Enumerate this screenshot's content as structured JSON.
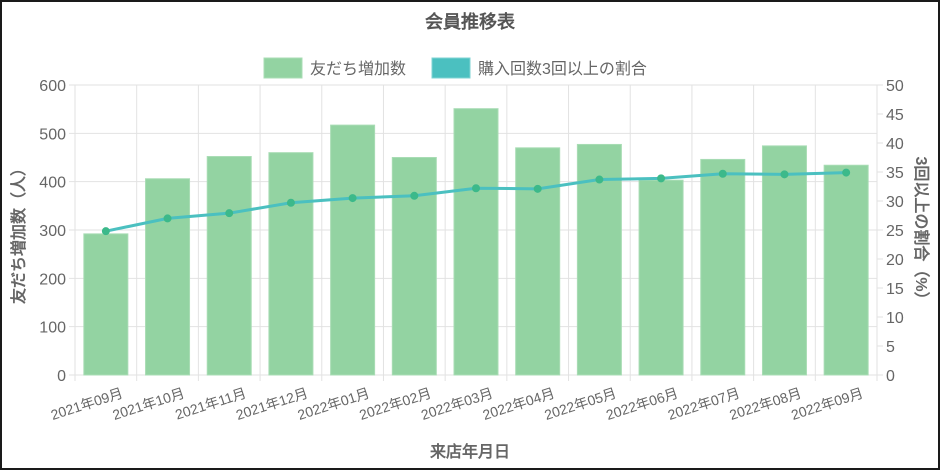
{
  "chart_data": {
    "type": "bar+line",
    "title": "会員推移表",
    "xlabel": "来店年月日",
    "ylabel_left": "友だち増加数（人）",
    "ylabel_right": "3回以上の割合（%）",
    "categories": [
      "2021年09月",
      "2021年10月",
      "2021年11月",
      "2021年12月",
      "2022年01月",
      "2022年02月",
      "2022年03月",
      "2022年04月",
      "2022年05月",
      "2022年06月",
      "2022年07月",
      "2022年08月",
      "2022年09月"
    ],
    "series": [
      {
        "name": "友だち増加数",
        "type": "bar",
        "axis": "left",
        "color": "#93d3a2",
        "values": [
          292,
          406,
          452,
          460,
          517,
          450,
          551,
          470,
          477,
          403,
          446,
          474,
          434
        ]
      },
      {
        "name": "購入回数3回以上の割合",
        "type": "line",
        "axis": "right",
        "color": "#4bc0c0",
        "values": [
          24.8,
          27.0,
          27.9,
          29.7,
          30.5,
          30.9,
          32.2,
          32.1,
          33.7,
          33.9,
          34.7,
          34.6,
          34.9
        ]
      }
    ],
    "ylim_left": [
      0,
      600
    ],
    "yticks_left": [
      0,
      100,
      200,
      300,
      400,
      500,
      600
    ],
    "ylim_right": [
      0,
      50
    ],
    "yticks_right": [
      0,
      5,
      10,
      15,
      20,
      25,
      30,
      35,
      40,
      45,
      50
    ],
    "grid": true,
    "legend_position": "top"
  },
  "colors": {
    "bar_fill": "#93d3a2",
    "bar_border": "#a8dcb4",
    "line": "#4bc0c0",
    "point": "#3cb98a",
    "grid": "#e2e2e2",
    "text": "#666666",
    "title": "#555555"
  }
}
